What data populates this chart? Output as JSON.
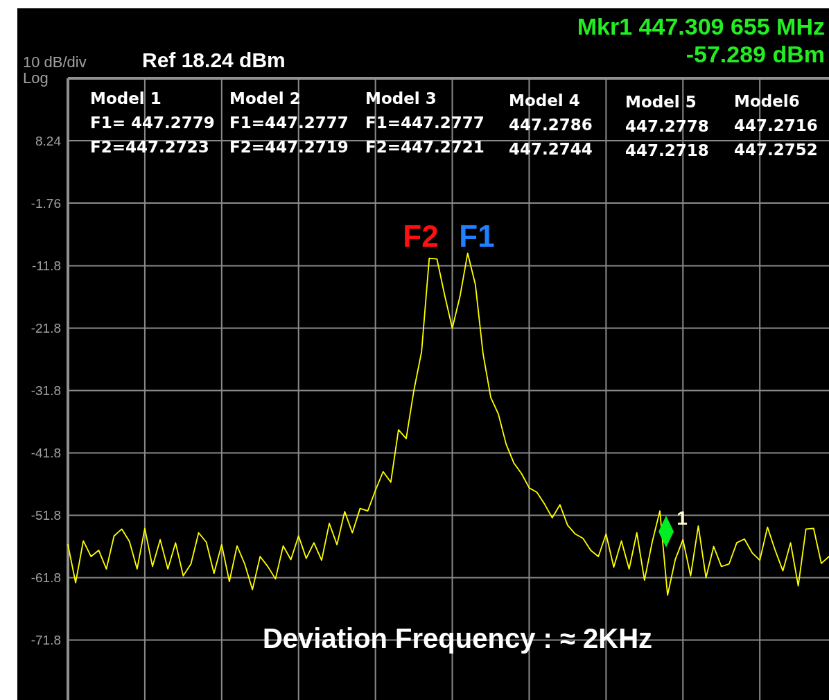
{
  "chart_data": {
    "type": "line",
    "annotations": [
      "10 dB/div",
      "Log",
      "Ref 18.24 dBm",
      "Mkr1 447.309 655 MHz",
      "-57.289 dBm",
      "Model 1",
      "F1= 447.2779",
      "F2=447.2723",
      "Model 2",
      "F1=447.2777",
      "F2=447.2719",
      "Model 3",
      "F1=447.2777",
      "F2=447.2721",
      "Model 4",
      "447.2786",
      "447.2744",
      "Model 5",
      "447.2778",
      "447.2718",
      "Model6",
      "447.2716",
      "447.2752",
      "F2",
      "F1",
      "1",
      "Deviation Frequency : ≈ 2KHz"
    ],
    "categories": [
      null,
      null,
      null,
      null,
      null,
      null,
      null,
      null,
      null,
      null,
      null,
      null,
      null,
      null,
      null,
      null,
      null,
      null,
      null,
      null,
      null,
      null,
      null,
      null,
      null,
      null,
      null,
      null,
      null,
      null,
      null,
      null,
      null,
      null,
      null,
      null,
      null,
      null,
      null,
      null,
      null,
      null,
      null,
      null,
      null,
      null,
      null,
      null,
      null,
      null,
      null,
      null,
      null,
      null,
      null,
      null,
      null,
      null,
      null,
      null,
      null,
      null,
      null,
      null,
      null,
      null,
      null,
      null,
      null,
      null,
      null,
      null,
      null,
      null,
      null,
      null,
      null,
      null,
      null,
      null,
      null,
      null,
      null,
      null,
      null,
      null,
      null,
      null,
      null,
      null,
      null,
      null,
      null,
      null,
      null,
      null,
      null,
      null,
      null,
      null
    ],
    "ylim": [
      -81.4,
      18.24
    ],
    "yticks": [
      8.24,
      -1.76,
      -11.8,
      -21.8,
      -31.8,
      -41.8,
      -51.8,
      -61.8,
      -71.8
    ],
    "tick_labels": "y",
    "grid": true,
    "marker": "none",
    "line_style": "solid",
    "series": [
      {
        "color": "#ffff00",
        "values": [
          -56.5,
          -62.6,
          -55.9,
          -58.4,
          -57.4,
          -60.4,
          -55.1,
          -54.0,
          -56.0,
          -60.4,
          -53.9,
          -60.0,
          -55.7,
          -60.4,
          -56.2,
          -61.5,
          -59.6,
          -54.6,
          -56.1,
          -61.1,
          -56.5,
          -62.4,
          -56.7,
          -59.6,
          -63.7,
          -58.4,
          -60.0,
          -62.0,
          -56.7,
          -58.9,
          -55.1,
          -58.7,
          -56.2,
          -59.0,
          -53.1,
          -56.5,
          -51.2,
          -54.6,
          -50.7,
          -51.1,
          -47.8,
          -44.8,
          -46.5,
          -38.1,
          -39.5,
          -31.8,
          -25.6,
          -10.6,
          -10.7,
          -16.5,
          -21.8,
          -16.7,
          -9.8,
          -14.8,
          -25.9,
          -32.9,
          -35.6,
          -40.4,
          -43.4,
          -45.1,
          -47.4,
          -48.1,
          -50.0,
          -52.2,
          -50.1,
          -53.4,
          -54.8,
          -55.5,
          -57.4,
          -58.4,
          -54.8,
          -60.1,
          -55.9,
          -60.4,
          -54.6,
          -62.2,
          -56.1,
          -51.1,
          -64.6,
          -58.9,
          -55.7,
          -61.5,
          -53.5,
          -61.8,
          -56.8,
          -60.0,
          -59.6,
          -56.2,
          -55.6,
          -57.8,
          -59.0,
          -53.7,
          -57.4,
          -60.7,
          -56.2,
          -63.1,
          -54.0,
          -53.9,
          -59.5,
          -58.4
        ]
      }
    ]
  }
}
